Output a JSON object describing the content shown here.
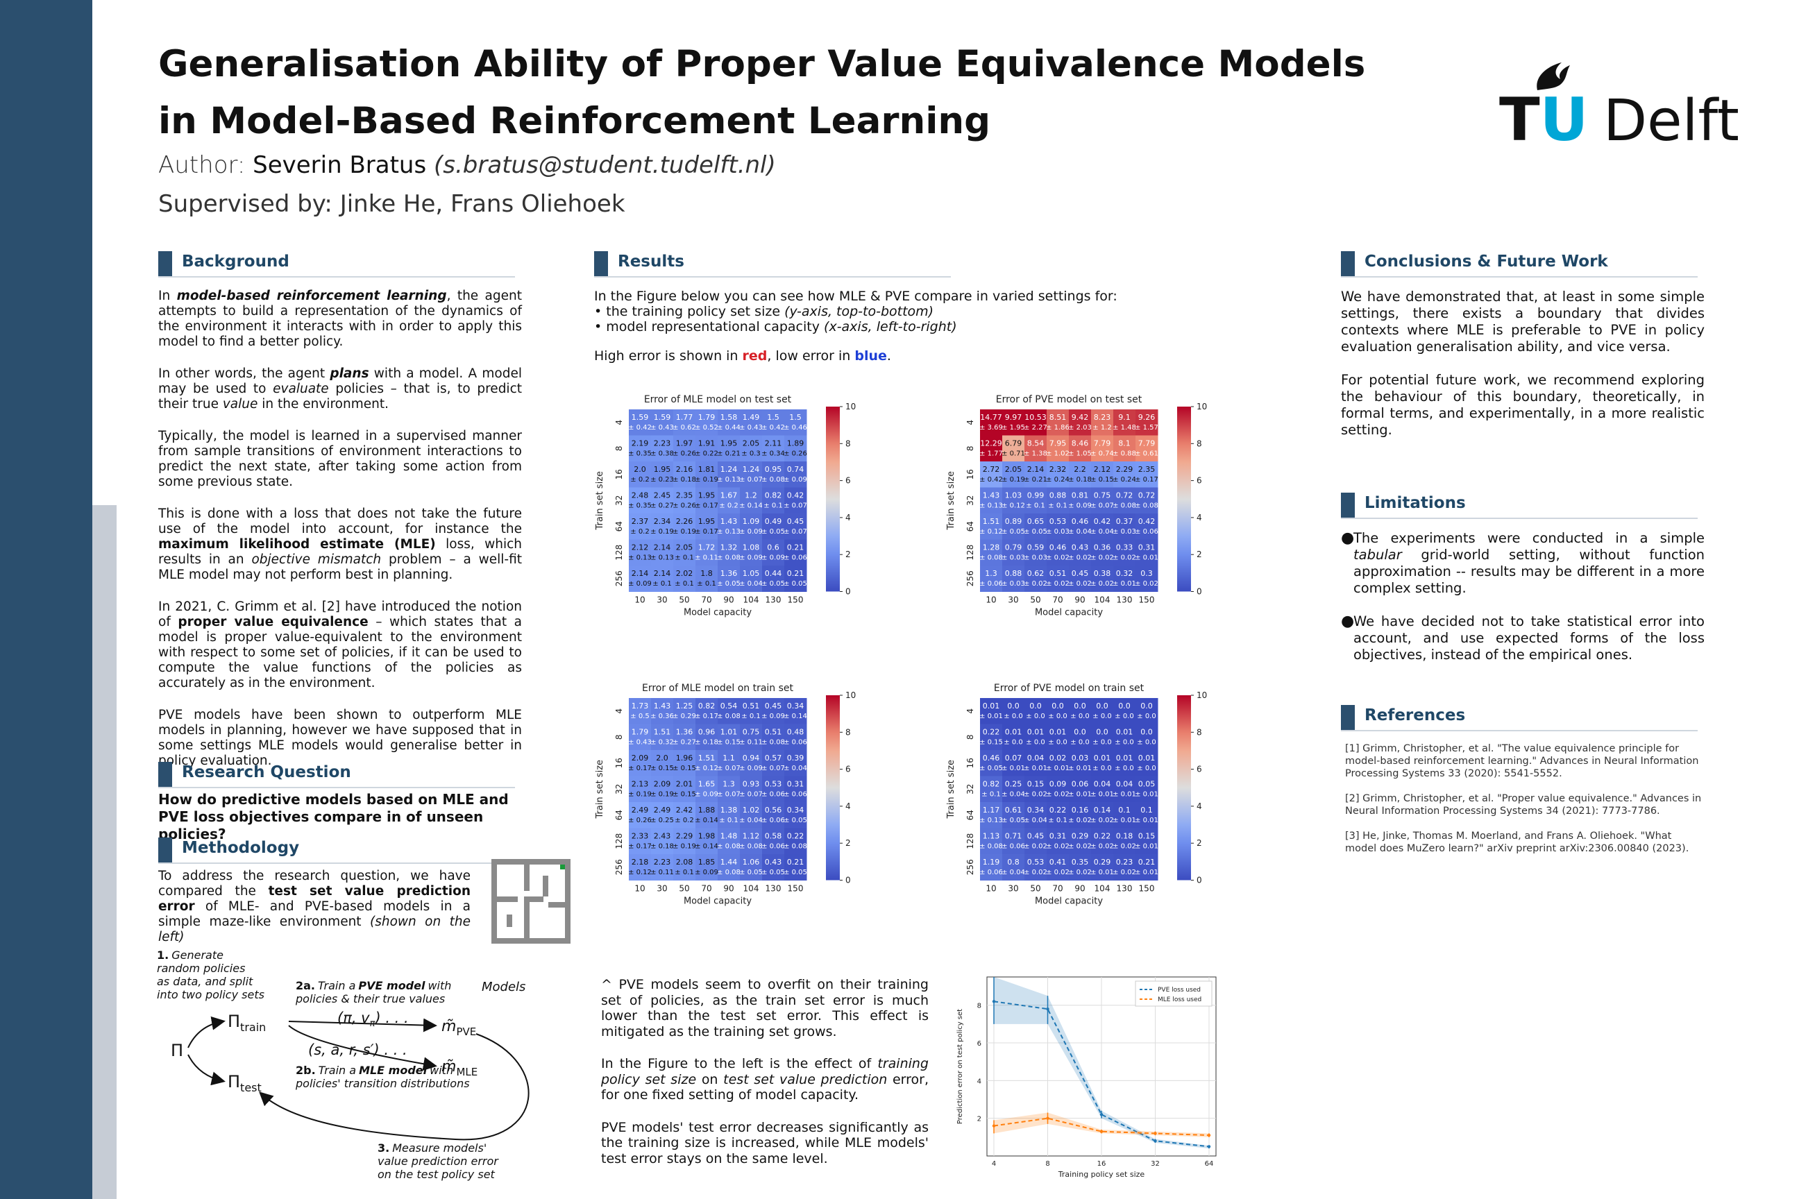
{
  "header": {
    "title_line1": "Generalisation Ability of Proper Value Equivalence Models",
    "title_line2": "in Model-Based Reinforcement Learning",
    "author_prefix": "Author:",
    "author_name": "Severin Bratus",
    "author_email": "(s.bratus@student.tudelft.nl)",
    "supervised": "Supervised by: Jinke He, Frans Oliehoek",
    "logo_tu": "TU",
    "logo_delft": "Delft"
  },
  "colors": {
    "sidebar": "#2b4f6e",
    "heading": "#1f4766",
    "accent_red": "#d72027",
    "accent_blue": "#1e3fd6",
    "logo_blue": "#00a6d6"
  },
  "background": {
    "heading": "Background",
    "p1_a": "In",
    "p1_b": "model-based reinforcement learning",
    "p1_c": ", the agent attempts to build a representation of the dynamics of the environment it interacts with in order to apply this model to find a better policy.",
    "p2_a": "In other words, the agent",
    "p2_b": "plans",
    "p2_c": "with a model. A model may be used to",
    "p2_d": "evaluate",
    "p2_e": "policies – that is, to predict their true",
    "p2_f": "value",
    "p2_g": "in the environment.",
    "p3": "Typically, the model is learned in a supervised manner from sample transitions of environment interactions to predict the next state, after taking some action from some previous state.",
    "p4_a": "This is done with a loss that does not take the future use of the model into account, for instance the",
    "p4_b": "maximum likelihood estimate (MLE)",
    "p4_c": "loss, which results in an",
    "p4_d": "objective mismatch",
    "p4_e": "problem – a well-fit MLE model may not perform best in planning.",
    "p5_a": "In 2021, C. Grimm et al. [2] have introduced the notion of",
    "p5_b": "proper value equivalence",
    "p5_c": "– which states that a model is proper value-equivalent to the environment with respect to some set of policies, if it can be used to compute the value functions of the policies as accurately as in the environment.",
    "p6": "PVE models have been shown to outperform MLE models in planning, however we have supposed that in some settings MLE models would generalise better in policy evaluation."
  },
  "research_question": {
    "heading": "Research Question",
    "text": "How do predictive models based on MLE and PVE loss objectives compare in  of unseen policies?"
  },
  "methodology": {
    "heading": "Methodology",
    "text_a": "To address the research question, we have compared the",
    "text_b": "test set value prediction error",
    "text_c": "of MLE- and PVE-based models in a simple maze-like environment",
    "text_d": "(shown on the left)",
    "step1_num": "1.",
    "step1_lines": [
      "Generate",
      "random policies",
      "as data, and split",
      "into two policy sets"
    ],
    "step2a_num": "2a.",
    "step2a_line1_a": "Train a",
    "step2a_line1_b": "PVE model",
    "step2a_line1_c": "with",
    "step2a_line2": "policies & their true values",
    "step2b_num": "2b.",
    "step2b_line1_a": "Train a",
    "step2b_line1_b": "MLE model",
    "step2b_line1_c": "with",
    "step2b_line2": "policies' transition distributions",
    "step3_num": "3.",
    "step3_lines": [
      "Measure models'",
      "value prediction error",
      "on the test policy set"
    ],
    "models_label": "Models",
    "sym_pi": "Π",
    "sym_train": "Π",
    "sub_train": "train",
    "sym_test": "Π",
    "sub_test": "test",
    "pve_tuple": "(π, v",
    "pve_tuple_sub": "π",
    "pve_tuple_end": ") . . .",
    "mle_tuple": "(s, a, r, s′) . . .",
    "m_pve": "m̃",
    "m_pve_sub": "PVE",
    "m_mle": "m̃",
    "m_mle_sub": "MLE"
  },
  "results": {
    "heading": "Results",
    "intro": "In the Figure below you can see how MLE & PVE compare in varied settings for:",
    "bullet1_a": "the training policy set size",
    "bullet1_b": "(y-axis, top-to-bottom)",
    "bullet2_a": "model representational capacity",
    "bullet2_b": "(x-axis, left-to-right)",
    "legend_a": "High error is shown in",
    "legend_red": "red",
    "legend_b": ", low error in",
    "legend_blue": "blue",
    "legend_c": ".",
    "overfit_p1": "^ PVE models seem to overfit on their training set of policies, as the train set error is much lower than the test set error. This effect is mitigated as the training set grows.",
    "overfit_p2_a": "In the Figure to the left is the effect of",
    "overfit_p2_b": "training policy set size",
    "overfit_p2_c": "on",
    "overfit_p2_d": "test set value prediction",
    "overfit_p2_e": "error, for one fixed setting of model capacity.",
    "overfit_p3": "PVE models' test error decreases significantly as the training size is increased, while MLE models' test error stays on the same level."
  },
  "chart_data": [
    {
      "type": "heatmap",
      "title": "Error of MLE model on test set",
      "xlabel": "Model capacity",
      "ylabel": "Train set size",
      "x": [
        "10",
        "30",
        "50",
        "70",
        "90",
        "104",
        "130",
        "150"
      ],
      "y": [
        "4",
        "8",
        "16",
        "32",
        "64",
        "128",
        "256"
      ],
      "colorbar": {
        "min": 0,
        "max": 10,
        "ticks": [
          "0",
          "2",
          "4",
          "6",
          "8",
          "10"
        ]
      },
      "values": [
        [
          "1.59",
          "1.59",
          "1.77",
          "1.79",
          "1.58",
          "1.49",
          "1.5",
          "1.5"
        ],
        [
          "2.19",
          "2.23",
          "1.97",
          "1.91",
          "1.95",
          "2.05",
          "2.11",
          "1.89"
        ],
        [
          "2.0",
          "1.95",
          "2.16",
          "1.81",
          "1.24",
          "1.24",
          "0.95",
          "0.74"
        ],
        [
          "2.48",
          "2.45",
          "2.35",
          "1.95",
          "1.67",
          "1.2",
          "0.82",
          "0.42"
        ],
        [
          "2.37",
          "2.34",
          "2.26",
          "1.95",
          "1.43",
          "1.09",
          "0.49",
          "0.45"
        ],
        [
          "2.12",
          "2.14",
          "2.05",
          "1.72",
          "1.32",
          "1.08",
          "0.6",
          "0.21"
        ],
        [
          "2.14",
          "2.14",
          "2.02",
          "1.8",
          "1.36",
          "1.05",
          "0.44",
          "0.21"
        ]
      ],
      "std": [
        [
          "± 0.42",
          "± 0.43",
          "± 0.62",
          "± 0.52",
          "± 0.44",
          "± 0.43",
          "± 0.42",
          "± 0.46"
        ],
        [
          "± 0.35",
          "± 0.38",
          "± 0.26",
          "± 0.22",
          "± 0.21",
          "± 0.3",
          "± 0.34",
          "± 0.26"
        ],
        [
          "± 0.2",
          "± 0.23",
          "± 0.18",
          "± 0.19",
          "± 0.13",
          "± 0.07",
          "± 0.08",
          "± 0.09"
        ],
        [
          "± 0.35",
          "± 0.27",
          "± 0.26",
          "± 0.17",
          "± 0.2",
          "± 0.14",
          "± 0.1",
          "± 0.07"
        ],
        [
          "± 0.2",
          "± 0.19",
          "± 0.19",
          "± 0.17",
          "± 0.13",
          "± 0.09",
          "± 0.05",
          "± 0.07"
        ],
        [
          "± 0.13",
          "± 0.13",
          "± 0.1",
          "± 0.11",
          "± 0.08",
          "± 0.09",
          "± 0.09",
          "± 0.06"
        ],
        [
          "± 0.09",
          "± 0.1",
          "± 0.1",
          "± 0.1",
          "± 0.05",
          "± 0.04",
          "± 0.05",
          "± 0.05"
        ]
      ]
    },
    {
      "type": "heatmap",
      "title": "Error of PVE model on test set",
      "xlabel": "Model capacity",
      "ylabel": "Train set size",
      "x": [
        "10",
        "30",
        "50",
        "70",
        "90",
        "104",
        "130",
        "150"
      ],
      "y": [
        "4",
        "8",
        "16",
        "32",
        "64",
        "128",
        "256"
      ],
      "colorbar": {
        "min": 0,
        "max": 10,
        "ticks": [
          "0",
          "2",
          "4",
          "6",
          "8",
          "10"
        ]
      },
      "values": [
        [
          "14.77",
          "9.97",
          "10.53",
          "8.51",
          "9.42",
          "8.23",
          "9.1",
          "9.26"
        ],
        [
          "12.29",
          "6.79",
          "8.54",
          "7.95",
          "8.46",
          "7.79",
          "8.1",
          "7.79"
        ],
        [
          "2.72",
          "2.05",
          "2.14",
          "2.32",
          "2.2",
          "2.12",
          "2.29",
          "2.35"
        ],
        [
          "1.43",
          "1.03",
          "0.99",
          "0.88",
          "0.81",
          "0.75",
          "0.72",
          "0.72"
        ],
        [
          "1.51",
          "0.89",
          "0.65",
          "0.53",
          "0.46",
          "0.42",
          "0.37",
          "0.42"
        ],
        [
          "1.28",
          "0.79",
          "0.59",
          "0.46",
          "0.43",
          "0.36",
          "0.33",
          "0.31"
        ],
        [
          "1.3",
          "0.88",
          "0.62",
          "0.51",
          "0.45",
          "0.38",
          "0.32",
          "0.3"
        ]
      ],
      "std": [
        [
          "± 3.69",
          "± 1.95",
          "± 2.27",
          "± 1.86",
          "± 2.03",
          "± 1.2",
          "± 1.48",
          "± 1.57"
        ],
        [
          "± 1.77",
          "± 0.71",
          "± 1.38",
          "± 1.02",
          "± 1.05",
          "± 0.74",
          "± 0.88",
          "± 0.61"
        ],
        [
          "± 0.42",
          "± 0.19",
          "± 0.21",
          "± 0.24",
          "± 0.18",
          "± 0.15",
          "± 0.24",
          "± 0.17"
        ],
        [
          "± 0.13",
          "± 0.12",
          "± 0.1",
          "± 0.1",
          "± 0.09",
          "± 0.07",
          "± 0.08",
          "± 0.08"
        ],
        [
          "± 0.12",
          "± 0.05",
          "± 0.05",
          "± 0.03",
          "± 0.04",
          "± 0.04",
          "± 0.03",
          "± 0.06"
        ],
        [
          "± 0.08",
          "± 0.03",
          "± 0.03",
          "± 0.02",
          "± 0.02",
          "± 0.02",
          "± 0.02",
          "± 0.01"
        ],
        [
          "± 0.06",
          "± 0.03",
          "± 0.02",
          "± 0.02",
          "± 0.02",
          "± 0.02",
          "± 0.01",
          "± 0.02"
        ]
      ]
    },
    {
      "type": "heatmap",
      "title": "Error of MLE model on train set",
      "xlabel": "Model capacity",
      "ylabel": "Train set size",
      "x": [
        "10",
        "30",
        "50",
        "70",
        "90",
        "104",
        "130",
        "150"
      ],
      "y": [
        "4",
        "8",
        "16",
        "32",
        "64",
        "128",
        "256"
      ],
      "colorbar": {
        "min": 0,
        "max": 10,
        "ticks": [
          "0",
          "2",
          "4",
          "6",
          "8",
          "10"
        ]
      },
      "values": [
        [
          "1.73",
          "1.43",
          "1.25",
          "0.82",
          "0.54",
          "0.51",
          "0.45",
          "0.34"
        ],
        [
          "1.79",
          "1.51",
          "1.36",
          "0.96",
          "1.01",
          "0.75",
          "0.51",
          "0.48"
        ],
        [
          "2.09",
          "2.0",
          "1.96",
          "1.51",
          "1.1",
          "0.94",
          "0.57",
          "0.39"
        ],
        [
          "2.13",
          "2.09",
          "2.01",
          "1.65",
          "1.3",
          "0.93",
          "0.53",
          "0.31"
        ],
        [
          "2.49",
          "2.49",
          "2.42",
          "1.88",
          "1.38",
          "1.02",
          "0.56",
          "0.34"
        ],
        [
          "2.33",
          "2.43",
          "2.29",
          "1.98",
          "1.48",
          "1.12",
          "0.58",
          "0.22"
        ],
        [
          "2.18",
          "2.23",
          "2.08",
          "1.85",
          "1.44",
          "1.06",
          "0.43",
          "0.21"
        ]
      ],
      "std": [
        [
          "± 0.5",
          "± 0.36",
          "± 0.29",
          "± 0.17",
          "± 0.08",
          "± 0.1",
          "± 0.09",
          "± 0.14"
        ],
        [
          "± 0.43",
          "± 0.32",
          "± 0.27",
          "± 0.18",
          "± 0.15",
          "± 0.11",
          "± 0.08",
          "± 0.06"
        ],
        [
          "± 0.17",
          "± 0.15",
          "± 0.15",
          "± 0.12",
          "± 0.07",
          "± 0.09",
          "± 0.07",
          "± 0.04"
        ],
        [
          "± 0.19",
          "± 0.19",
          "± 0.15",
          "± 0.09",
          "± 0.07",
          "± 0.07",
          "± 0.06",
          "± 0.06"
        ],
        [
          "± 0.26",
          "± 0.25",
          "± 0.2",
          "± 0.14",
          "± 0.1",
          "± 0.04",
          "± 0.06",
          "± 0.05"
        ],
        [
          "± 0.17",
          "± 0.18",
          "± 0.19",
          "± 0.14",
          "± 0.08",
          "± 0.08",
          "± 0.06",
          "± 0.08"
        ],
        [
          "± 0.12",
          "± 0.11",
          "± 0.1",
          "± 0.09",
          "± 0.08",
          "± 0.05",
          "± 0.05",
          "± 0.05"
        ]
      ]
    },
    {
      "type": "heatmap",
      "title": "Error of PVE model on train set",
      "xlabel": "Model capacity",
      "ylabel": "Train set size",
      "x": [
        "10",
        "30",
        "50",
        "70",
        "90",
        "104",
        "130",
        "150"
      ],
      "y": [
        "4",
        "8",
        "16",
        "32",
        "64",
        "128",
        "256"
      ],
      "colorbar": {
        "min": 0,
        "max": 10,
        "ticks": [
          "0",
          "2",
          "4",
          "6",
          "8",
          "10"
        ]
      },
      "values": [
        [
          "0.01",
          "0.0",
          "0.0",
          "0.0",
          "0.0",
          "0.0",
          "0.0",
          "0.0"
        ],
        [
          "0.22",
          "0.01",
          "0.01",
          "0.01",
          "0.0",
          "0.0",
          "0.01",
          "0.0"
        ],
        [
          "0.46",
          "0.07",
          "0.04",
          "0.02",
          "0.03",
          "0.01",
          "0.01",
          "0.01"
        ],
        [
          "0.82",
          "0.25",
          "0.15",
          "0.09",
          "0.06",
          "0.04",
          "0.04",
          "0.05"
        ],
        [
          "1.17",
          "0.61",
          "0.34",
          "0.22",
          "0.16",
          "0.14",
          "0.1",
          "0.1"
        ],
        [
          "1.13",
          "0.71",
          "0.45",
          "0.31",
          "0.29",
          "0.22",
          "0.18",
          "0.15"
        ],
        [
          "1.19",
          "0.8",
          "0.53",
          "0.41",
          "0.35",
          "0.29",
          "0.23",
          "0.21"
        ]
      ],
      "std": [
        [
          "± 0.01",
          "± 0.0",
          "± 0.0",
          "± 0.0",
          "± 0.0",
          "± 0.0",
          "± 0.0",
          "± 0.0"
        ],
        [
          "± 0.15",
          "± 0.0",
          "± 0.0",
          "± 0.0",
          "± 0.0",
          "± 0.0",
          "± 0.0",
          "± 0.0"
        ],
        [
          "± 0.05",
          "± 0.01",
          "± 0.01",
          "± 0.01",
          "± 0.01",
          "± 0.0",
          "± 0.0",
          "± 0.0"
        ],
        [
          "± 0.1",
          "± 0.04",
          "± 0.02",
          "± 0.02",
          "± 0.01",
          "± 0.01",
          "± 0.01",
          "± 0.01"
        ],
        [
          "± 0.13",
          "± 0.05",
          "± 0.04",
          "± 0.1",
          "± 0.02",
          "± 0.02",
          "± 0.01",
          "± 0.01"
        ],
        [
          "± 0.08",
          "± 0.06",
          "± 0.02",
          "± 0.02",
          "± 0.02",
          "± 0.02",
          "± 0.02",
          "± 0.01"
        ],
        [
          "± 0.06",
          "± 0.04",
          "± 0.02",
          "± 0.02",
          "± 0.02",
          "± 0.01",
          "± 0.02",
          "± 0.01"
        ]
      ]
    },
    {
      "type": "line",
      "title": "",
      "xlabel": "Training policy set size",
      "ylabel": "Prediction error on test policy set",
      "x": [
        "4",
        "8",
        "16",
        "32",
        "64"
      ],
      "yticks": [
        "2",
        "4",
        "6",
        "8"
      ],
      "ylim": [
        0,
        9.5
      ],
      "legend": "top-right",
      "series": [
        {
          "name": "PVE loss used",
          "color": "#1f77b4",
          "values": [
            8.2,
            7.8,
            2.2,
            0.8,
            0.5
          ],
          "band_low": [
            7.0,
            7.0,
            2.0,
            0.7,
            0.4
          ],
          "band_high": [
            9.5,
            8.5,
            2.4,
            0.9,
            0.55
          ]
        },
        {
          "name": "MLE loss used",
          "color": "#ff7f0e",
          "values": [
            1.6,
            2.0,
            1.3,
            1.2,
            1.1
          ],
          "band_low": [
            1.2,
            1.7,
            1.2,
            1.1,
            1.0
          ],
          "band_high": [
            1.9,
            2.3,
            1.4,
            1.3,
            1.2
          ]
        }
      ]
    }
  ],
  "conclusions": {
    "heading": "Conclusions & Future Work",
    "p1": "We have demonstrated that, at least in some simple settings, there exists a boundary that divides contexts where MLE is preferable to PVE in policy evaluation generalisation ability, and vice versa.",
    "p2": "For potential future work, we recommend exploring the behaviour of this boundary, theoretically, in formal terms, and experimentally, in a more realistic setting."
  },
  "limitations": {
    "heading": "Limitations",
    "bullet": "●",
    "l1_a": "The experiments were conducted in a simple",
    "l1_b": "tabular",
    "l1_c": "grid-world setting, without function approximation -- results may be different in a more complex setting.",
    "l2": "We have decided not to take statistical error into account, and use expected forms of the loss objectives, instead of the empirical ones."
  },
  "references": {
    "heading": "References",
    "r1": "[1] Grimm, Christopher, et al. \"The value equivalence principle for model-based reinforcement learning.\" Advances in Neural Information Processing Systems 33 (2020): 5541-5552.",
    "r2": "[2] Grimm, Christopher, et al. \"Proper value equivalence.\" Advances in Neural Information Processing Systems 34 (2021): 7773-7786.",
    "r3": "[3] He, Jinke, Thomas M. Moerland, and Frans A. Oliehoek. \"What model does MuZero learn?\" arXiv preprint arXiv:2306.00840 (2023)."
  }
}
